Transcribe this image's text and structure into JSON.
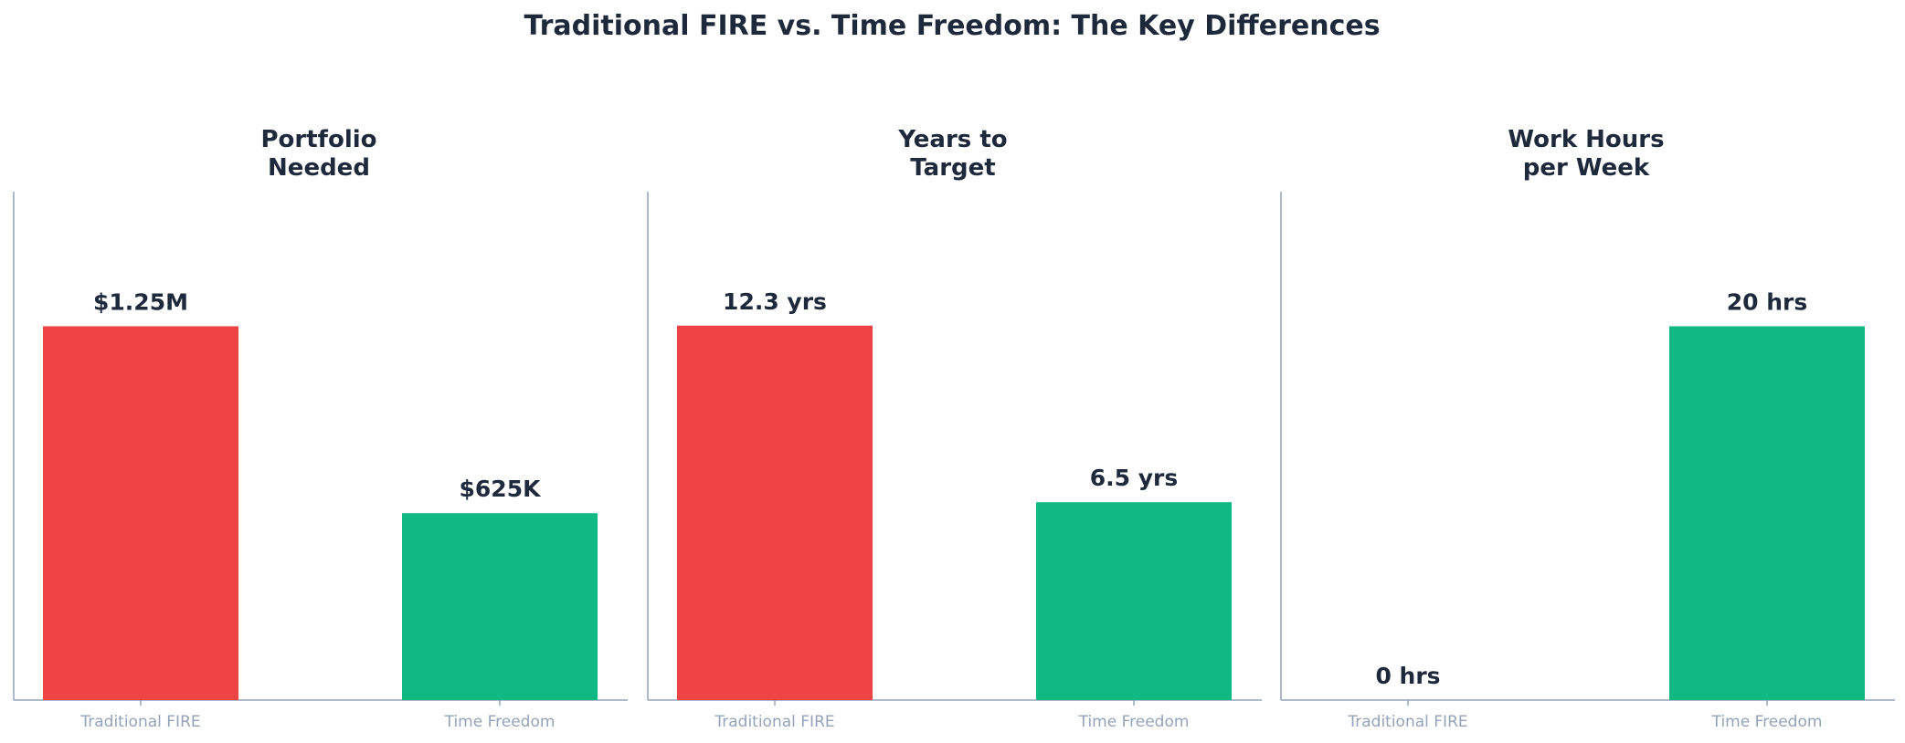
{
  "title": "Traditional FIRE vs. Time Freedom: The Key Differences",
  "colors": {
    "text": "#1e293b",
    "tick": "#94a3b8",
    "axis": "#94a3b8",
    "traditional": "#ef4444",
    "freedom": "#10b981"
  },
  "chart_data": [
    {
      "type": "bar",
      "title_lines": [
        "Portfolio",
        "Needed"
      ],
      "categories": [
        "Traditional FIRE",
        "Time Freedom"
      ],
      "values": [
        1250000,
        625000
      ],
      "value_labels": [
        "$1.25M",
        "$625K"
      ],
      "ylim": [
        0,
        1700000
      ],
      "grid": false
    },
    {
      "type": "bar",
      "title_lines": [
        "Years to",
        "Target"
      ],
      "categories": [
        "Traditional FIRE",
        "Time Freedom"
      ],
      "values": [
        12.3,
        6.5
      ],
      "value_labels": [
        "12.3 yrs",
        "6.5 yrs"
      ],
      "ylim": [
        0,
        16.7
      ],
      "grid": false
    },
    {
      "type": "bar",
      "title_lines": [
        "Work Hours",
        "per Week"
      ],
      "categories": [
        "Traditional FIRE",
        "Time Freedom"
      ],
      "values": [
        0,
        20
      ],
      "value_labels": [
        "0 hrs",
        "20 hrs"
      ],
      "ylim": [
        0,
        27.2
      ],
      "grid": false
    }
  ]
}
